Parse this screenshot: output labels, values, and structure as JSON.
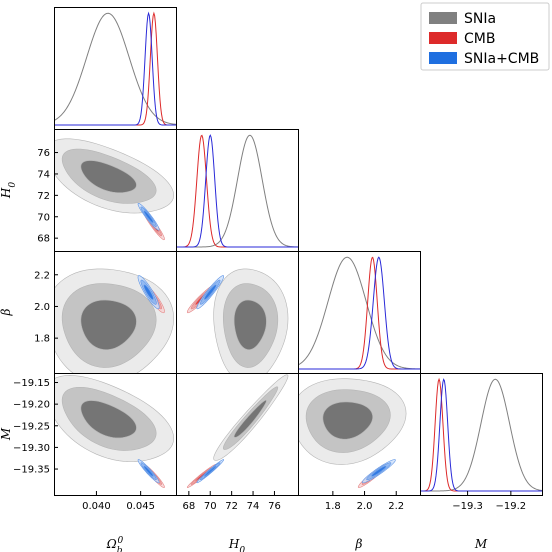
{
  "chart_data": {
    "type": "corner",
    "parameters": [
      {
        "key": "Ob",
        "label": "Ω",
        "sub": "b",
        "sup": "0",
        "range": [
          0.0352,
          0.049
        ],
        "ticks": [
          0.04,
          0.045
        ],
        "tick_labels": [
          "0.040",
          "0.045"
        ]
      },
      {
        "key": "H0",
        "label": "H",
        "sub": "0",
        "sup": "",
        "range": [
          66.8,
          78.2
        ],
        "ticks": [
          68,
          70,
          72,
          74,
          76
        ],
        "tick_labels": [
          "68",
          "70",
          "72",
          "74",
          "76"
        ]
      },
      {
        "key": "beta",
        "label": "β",
        "sub": "",
        "sup": "",
        "range": [
          1.58,
          2.35
        ],
        "ticks": [
          1.8,
          2.0,
          2.2
        ],
        "tick_labels": [
          "1.8",
          "2.0",
          "2.2"
        ]
      },
      {
        "key": "M",
        "label": "M",
        "sub": "",
        "sup": "",
        "range": [
          -19.41,
          -19.128
        ],
        "ticks": [
          -19.35,
          -19.3,
          -19.25,
          -19.2,
          -19.15
        ],
        "tick_labels": [
          "−19.35",
          "−19.30",
          "−19.25",
          "−19.20",
          "−19.15"
        ],
        "x_ticks": [
          -19.3,
          -19.2
        ],
        "x_tick_labels": [
          "−19.3",
          "−19.2"
        ]
      }
    ],
    "series": [
      {
        "name": "SNIa",
        "color": "#808080",
        "mean": {
          "Ob": 0.0413,
          "H0": 73.7,
          "beta": 1.89,
          "M": -19.236
        },
        "sigma": {
          "Ob": 0.0024,
          "H0": 1.15,
          "beta": 0.12,
          "M": 0.033
        },
        "corr": {
          "Ob-H0": -0.55,
          "Ob-beta": 0.0,
          "Ob-M": -0.5,
          "H0-beta": 0.0,
          "H0-M": 0.96,
          "beta-M": 0.05
        }
      },
      {
        "name": "CMB",
        "color": "#dd2a2a",
        "mean": {
          "Ob": 0.0465,
          "H0": 69.2,
          "beta": 2.05,
          "M": -19.366
        },
        "sigma": {
          "Ob": 0.0004,
          "H0": 0.45,
          "beta": 0.03,
          "M": 0.009
        },
        "corr": {
          "Ob-H0": -0.95,
          "Ob-beta": -0.9,
          "Ob-M": -0.95,
          "H0-beta": 0.95,
          "H0-M": 0.98,
          "beta-M": 0.95
        }
      },
      {
        "name": "SNIa+CMB",
        "color": "#1f6fe0",
        "mean": {
          "Ob": 0.0459,
          "H0": 70.0,
          "beta": 2.09,
          "M": -19.355
        },
        "sigma": {
          "Ob": 0.0004,
          "H0": 0.42,
          "beta": 0.035,
          "M": 0.009
        },
        "corr": {
          "Ob-H0": -0.95,
          "Ob-beta": -0.9,
          "Ob-M": -0.95,
          "H0-beta": 0.95,
          "H0-M": 0.98,
          "beta-M": 0.95
        }
      }
    ],
    "legend": {
      "position": "top-right",
      "entries": [
        "SNIa",
        "CMB",
        "SNIa+CMB"
      ]
    }
  }
}
